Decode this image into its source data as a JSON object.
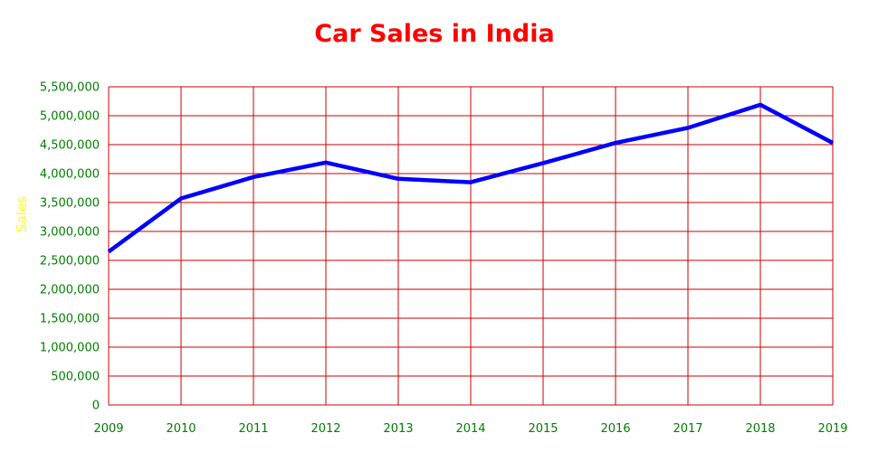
{
  "colors": {
    "title": "#ff0000",
    "grid": "#cc0000",
    "ticks": "#008000",
    "line": "#0000ff",
    "ylabel": "#ffff00"
  },
  "chart_data": {
    "type": "line",
    "title": "Car Sales in India",
    "xlabel": "",
    "ylabel": "Sales",
    "x": [
      "2009",
      "2010",
      "2011",
      "2012",
      "2013",
      "2014",
      "2015",
      "2016",
      "2017",
      "2018",
      "2019"
    ],
    "series": [
      {
        "values": [
          2650000,
          3570000,
          3940000,
          4190000,
          3910000,
          3850000,
          4180000,
          4530000,
          4790000,
          5190000,
          4530000
        ]
      }
    ],
    "ylim": [
      0,
      5500000
    ],
    "y_ticks": [
      0,
      500000,
      1000000,
      1500000,
      2000000,
      2500000,
      3000000,
      3500000,
      4000000,
      4500000,
      5000000,
      5500000
    ],
    "y_tick_labels": [
      "0",
      "500,000",
      "1,000,000",
      "1,500,000",
      "2,000,000",
      "2,500,000",
      "3,000,000",
      "3,500,000",
      "4,000,000",
      "4,500,000",
      "5,000,000",
      "5,500,000"
    ],
    "grid": true,
    "legend": "none"
  }
}
